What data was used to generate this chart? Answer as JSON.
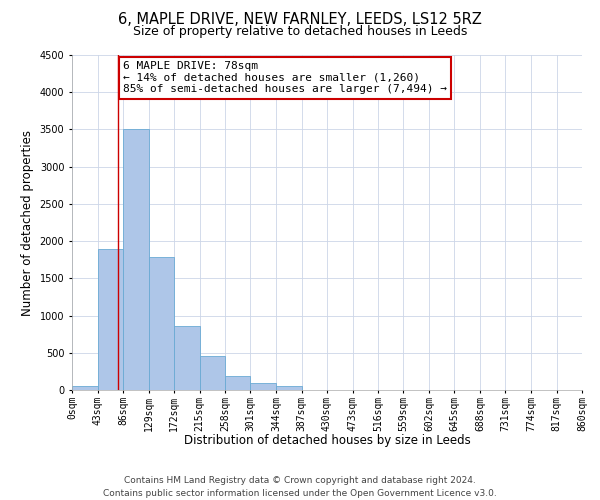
{
  "title": "6, MAPLE DRIVE, NEW FARNLEY, LEEDS, LS12 5RZ",
  "subtitle": "Size of property relative to detached houses in Leeds",
  "xlabel": "Distribution of detached houses by size in Leeds",
  "ylabel": "Number of detached properties",
  "bin_edges": [
    0,
    43,
    86,
    129,
    172,
    215,
    258,
    301,
    344,
    387,
    430,
    473,
    516,
    559,
    602,
    645,
    688,
    731,
    774,
    817,
    860
  ],
  "bin_labels": [
    "0sqm",
    "43sqm",
    "86sqm",
    "129sqm",
    "172sqm",
    "215sqm",
    "258sqm",
    "301sqm",
    "344sqm",
    "387sqm",
    "430sqm",
    "473sqm",
    "516sqm",
    "559sqm",
    "602sqm",
    "645sqm",
    "688sqm",
    "731sqm",
    "774sqm",
    "817sqm",
    "860sqm"
  ],
  "bar_heights": [
    50,
    1900,
    3500,
    1780,
    860,
    460,
    185,
    90,
    55,
    0,
    0,
    0,
    0,
    0,
    0,
    0,
    0,
    0,
    0,
    0
  ],
  "bar_color": "#aec6e8",
  "bar_edgecolor": "#6aaad4",
  "marker_x": 78,
  "annotation_line1": "6 MAPLE DRIVE: 78sqm",
  "annotation_line2": "← 14% of detached houses are smaller (1,260)",
  "annotation_line3": "85% of semi-detached houses are larger (7,494) →",
  "annotation_box_color": "#cc0000",
  "ylim": [
    0,
    4500
  ],
  "xlim_left": 0,
  "xlim_right": 860,
  "footer_line1": "Contains HM Land Registry data © Crown copyright and database right 2024.",
  "footer_line2": "Contains public sector information licensed under the Open Government Licence v3.0.",
  "background_color": "#ffffff",
  "grid_color": "#ccd6e8",
  "title_fontsize": 10.5,
  "subtitle_fontsize": 9,
  "axis_label_fontsize": 8.5,
  "tick_fontsize": 7,
  "annotation_fontsize": 8,
  "footer_fontsize": 6.5
}
